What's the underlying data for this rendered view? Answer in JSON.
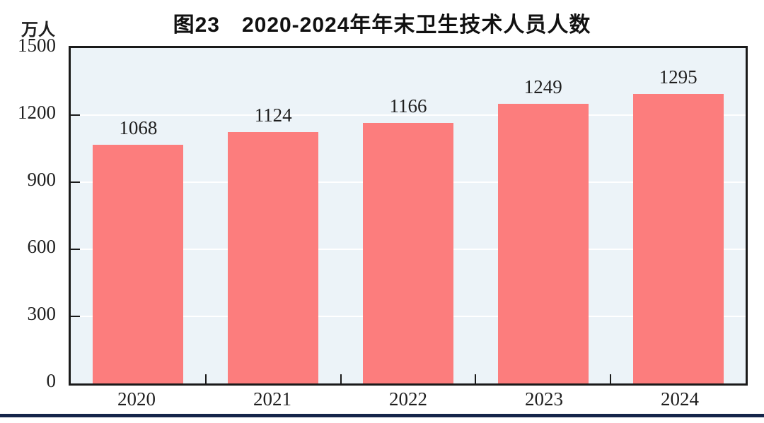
{
  "title": "图23　2020-2024年年末卫生技术人员人数",
  "chart_data": {
    "type": "bar",
    "title": "图23　2020-2024年年末卫生技术人员人数",
    "unit_label": "万人",
    "categories": [
      "2020",
      "2021",
      "2022",
      "2023",
      "2024"
    ],
    "values": [
      1068,
      1124,
      1166,
      1249,
      1295
    ],
    "xlabel": "",
    "ylabel": "万人",
    "ylim": [
      0,
      1500
    ],
    "yticks": [
      0,
      300,
      600,
      900,
      1200,
      1500
    ],
    "grid": true,
    "legend": "none",
    "colors": {
      "bar": "#fc7d7d",
      "plot_background": "#ecf3f8",
      "gridline": "#ffffff",
      "axis": "#1a1a1a",
      "text": "#1f1f1f",
      "bottom_rule": "#15254a"
    }
  }
}
